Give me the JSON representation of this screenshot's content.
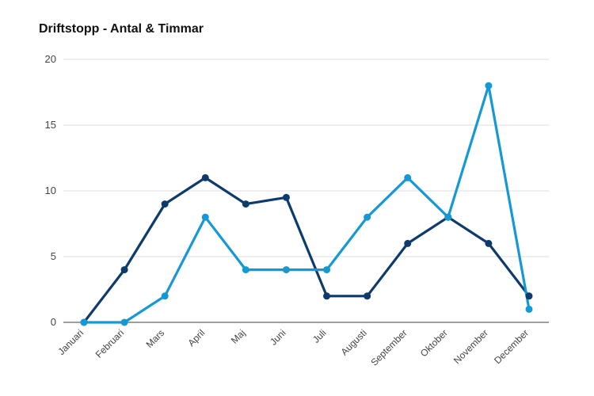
{
  "chart_data": {
    "type": "line",
    "title": "Driftstopp - Antal & Timmar",
    "xlabel": "",
    "ylabel": "",
    "categories": [
      "Januari",
      "Februari",
      "Mars",
      "April",
      "Maj",
      "Juni",
      "Juli",
      "Augusti",
      "September",
      "Oktober",
      "November",
      "December"
    ],
    "ylim": [
      0,
      20
    ],
    "yticks": [
      0,
      5,
      10,
      15,
      20
    ],
    "grid": true,
    "legend": "none",
    "series": [
      {
        "color": "#0d3b6e",
        "values": [
          0,
          4,
          9,
          11,
          9,
          9.5,
          2,
          2,
          6,
          8,
          6,
          2
        ]
      },
      {
        "color": "#1599d6",
        "values": [
          0,
          0,
          2,
          8,
          4,
          4,
          4,
          8,
          11,
          8,
          18,
          1
        ]
      }
    ]
  }
}
